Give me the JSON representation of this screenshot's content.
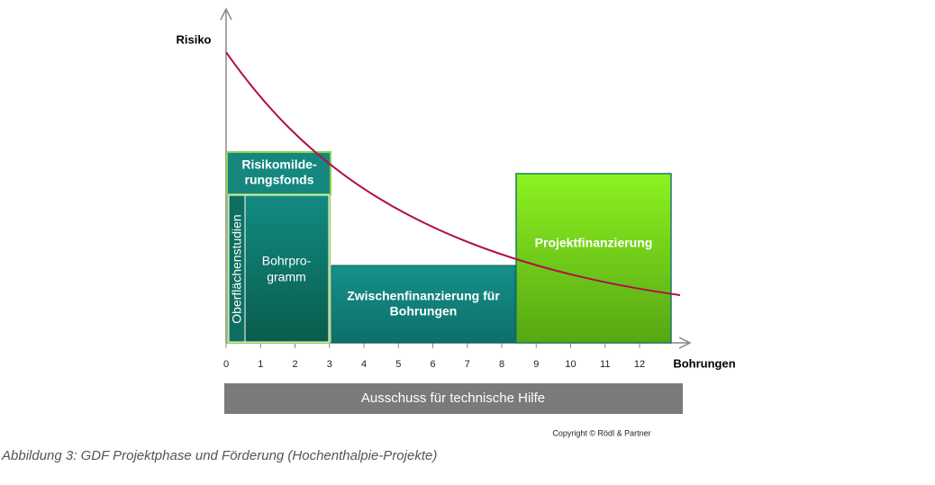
{
  "axes": {
    "y_label": "Risiko",
    "x_label": "Bohrungen",
    "x_ticks": [
      "0",
      "1",
      "2",
      "3",
      "4",
      "5",
      "6",
      "7",
      "8",
      "9",
      "10",
      "11",
      "12"
    ]
  },
  "boxes": {
    "risk_fund": [
      "Risikomilde-",
      "rungsfonds"
    ],
    "surface_studies": "Oberflächenstudien",
    "drilling_program": [
      "Bohrpro-",
      "gramm"
    ],
    "interim_financing": [
      "Zwischenfinanzierung für",
      "Bohrungen"
    ],
    "project_financing": "Projektfinanzierung"
  },
  "technical_assistance": "Ausschuss für technische Hilfe",
  "copyright": "Copyright © Rödl & Partner",
  "caption": "Abbildung 3: GDF Projektphase und Förderung (Hochenthalpie-Projekte)"
}
